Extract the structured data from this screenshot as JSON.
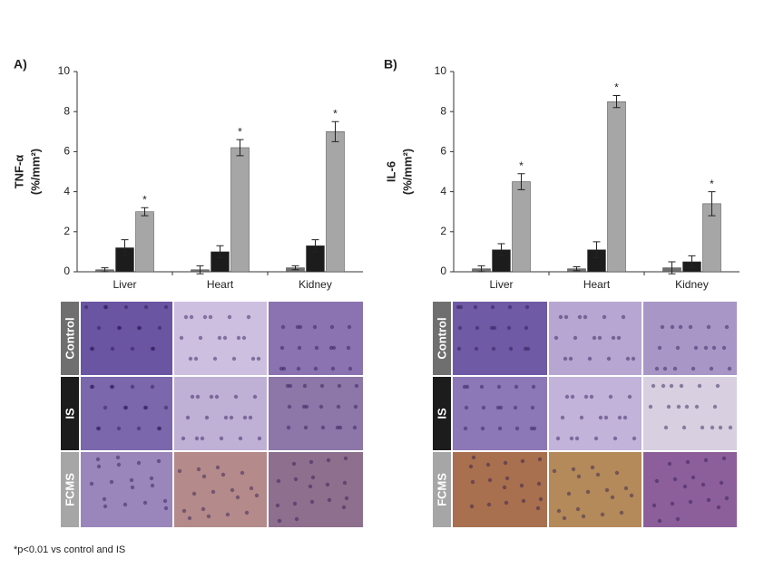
{
  "chart_data": [
    {
      "type": "bar",
      "panel_label": "A)",
      "ylabel": [
        "TNF-α",
        "(%/mm²)"
      ],
      "categories": [
        "Liver",
        "Heart",
        "Kidney"
      ],
      "series": [
        {
          "name": "Control",
          "color": "#6f6f6f",
          "values": [
            0.1,
            0.1,
            0.2
          ],
          "errors": [
            0.1,
            0.2,
            0.1
          ]
        },
        {
          "name": "IS",
          "color": "#1c1c1c",
          "values": [
            1.2,
            1.0,
            1.3
          ],
          "errors": [
            0.4,
            0.3,
            0.3
          ]
        },
        {
          "name": "FCMS",
          "color": "#a6a6a6",
          "values": [
            3.0,
            6.2,
            7.0
          ],
          "errors": [
            0.2,
            0.4,
            0.5
          ]
        }
      ],
      "significance": [
        "*",
        "*",
        "*"
      ],
      "ylim": [
        0,
        10
      ],
      "yticks": [
        0,
        2,
        4,
        6,
        8,
        10
      ],
      "grid": false
    },
    {
      "type": "bar",
      "panel_label": "B)",
      "ylabel": [
        "IL-6",
        "(%/mm²)"
      ],
      "categories": [
        "Liver",
        "Heart",
        "Kidney"
      ],
      "series": [
        {
          "name": "Control",
          "color": "#6f6f6f",
          "values": [
            0.15,
            0.15,
            0.2
          ],
          "errors": [
            0.15,
            0.1,
            0.3
          ]
        },
        {
          "name": "IS",
          "color": "#1c1c1c",
          "values": [
            1.1,
            1.1,
            0.5
          ],
          "errors": [
            0.3,
            0.4,
            0.3
          ]
        },
        {
          "name": "FCMS",
          "color": "#a6a6a6",
          "values": [
            4.5,
            8.5,
            3.4
          ],
          "errors": [
            0.4,
            0.3,
            0.6
          ]
        }
      ],
      "significance": [
        "*",
        "*",
        "*"
      ],
      "ylim": [
        0,
        10
      ],
      "yticks": [
        0,
        2,
        4,
        6,
        8,
        10
      ],
      "grid": false
    }
  ],
  "footnote": "*p<0.01 vs control and IS"
}
